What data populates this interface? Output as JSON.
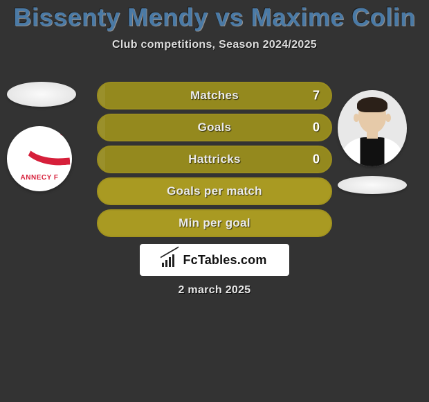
{
  "colors": {
    "background": "#333333",
    "title": "#4a7aa6",
    "bar_bg": "#94891e",
    "bar_bg_light": "#a99a22",
    "bar_border": "#9a8d1f",
    "brand_box_bg": "#ffffff",
    "annecy_red": "#d61f3a"
  },
  "typography": {
    "title_fontsize": 36,
    "subtitle_fontsize": 16,
    "bar_label_fontsize": 17,
    "brand_fontsize": 18,
    "date_fontsize": 16
  },
  "header": {
    "title": "Bissenty Mendy vs Maxime Colin",
    "subtitle": "Club competitions, Season 2024/2025"
  },
  "left": {
    "club_text": "ANNECY F"
  },
  "stats": [
    {
      "label": "Matches",
      "value": "7",
      "light": false
    },
    {
      "label": "Goals",
      "value": "0",
      "light": false
    },
    {
      "label": "Hattricks",
      "value": "0",
      "light": false
    },
    {
      "label": "Goals per match",
      "value": "",
      "light": true
    },
    {
      "label": "Min per goal",
      "value": "",
      "light": true
    }
  ],
  "brand": {
    "text": "FcTables.com"
  },
  "date": {
    "text": "2 march 2025"
  }
}
